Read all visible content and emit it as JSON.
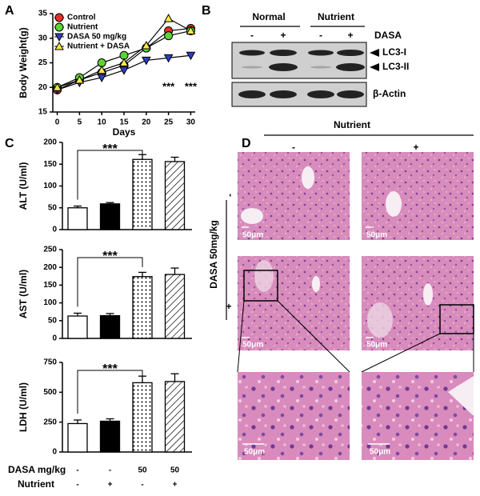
{
  "panel_labels": [
    "A",
    "B",
    "C",
    "D"
  ],
  "chart_data": [
    {
      "type": "line",
      "ylabel": "Body Weight(g)",
      "xlabel": "Days",
      "x": [
        0,
        5,
        10,
        15,
        20,
        25,
        30
      ],
      "xlim": [
        -1,
        31
      ],
      "xticks": [
        0,
        5,
        10,
        15,
        20,
        25,
        30
      ],
      "ylim": [
        15,
        35
      ],
      "yticks": [
        15,
        20,
        25,
        30,
        35
      ],
      "legend": "upper left",
      "series": [
        {
          "name": "Control",
          "color": "#e8302a",
          "marker": "circle",
          "values": [
            19.5,
            21.5,
            23,
            24.5,
            28,
            31.5,
            32
          ]
        },
        {
          "name": "Nutrient",
          "color": "#5ed238",
          "marker": "circle",
          "values": [
            20,
            22,
            25,
            26.5,
            28,
            30.5,
            31.5
          ]
        },
        {
          "name": "DASA 50 mg/kg",
          "color": "#2a3fc8",
          "marker": "triangle-down",
          "values": [
            19.5,
            21,
            22,
            23.5,
            25.5,
            26,
            26.5
          ]
        },
        {
          "name": "Nutrient + DASA",
          "color": "#f4e84a",
          "marker": "triangle-up",
          "values": [
            20,
            21.5,
            23.5,
            25,
            28.5,
            34,
            31.5
          ]
        }
      ],
      "annotations": [
        {
          "text": "***",
          "x": 25,
          "y": 20
        },
        {
          "text": "***",
          "x": 30,
          "y": 20
        }
      ]
    },
    {
      "type": "bar",
      "ylabel": "ALT (U/ml)",
      "fills": [
        "white",
        "black",
        "dotted",
        "hatched"
      ],
      "values": [
        50,
        59,
        161,
        156
      ],
      "errors": [
        4,
        3,
        11,
        10
      ],
      "ylim": [
        0,
        200
      ],
      "yticks": [
        0,
        50,
        100,
        150,
        200
      ],
      "significance": {
        "text": "***",
        "from": 0,
        "to": 2
      }
    },
    {
      "type": "bar",
      "ylabel": "AST (U/ml)",
      "fills": [
        "white",
        "black",
        "dotted",
        "hatched"
      ],
      "values": [
        63,
        64,
        174,
        180
      ],
      "errors": [
        8,
        6,
        12,
        18
      ],
      "ylim": [
        0,
        250
      ],
      "yticks": [
        0,
        50,
        100,
        150,
        200,
        250
      ],
      "significance": {
        "text": "***",
        "from": 0,
        "to": 2
      }
    },
    {
      "type": "bar",
      "ylabel": "LDH (U/ml)",
      "fills": [
        "white",
        "black",
        "dotted",
        "hatched"
      ],
      "values": [
        238,
        258,
        580,
        590
      ],
      "errors": [
        30,
        20,
        55,
        65
      ],
      "ylim": [
        0,
        750
      ],
      "yticks": [
        0,
        250,
        500,
        750
      ],
      "significance": {
        "text": "***",
        "from": 0,
        "to": 2
      }
    }
  ],
  "conditions": {
    "labels": [
      "DASA mg/kg",
      "Nutrient"
    ],
    "rows": [
      [
        "-",
        "-",
        "50",
        "50"
      ],
      [
        "-",
        "+",
        "-",
        "+"
      ]
    ]
  },
  "blot": {
    "groups": [
      "Normal",
      "Nutrient"
    ],
    "lanes": [
      "-",
      "+",
      "-",
      "+"
    ],
    "treatment": "DASA",
    "bands": [
      "LC3-I",
      "LC3-II"
    ],
    "loading": "β-Actin"
  },
  "histology": {
    "column_label": "Nutrient",
    "columns": [
      "-",
      "+"
    ],
    "row_label": "DASA 50mg/kg",
    "rows": [
      "-",
      "+"
    ],
    "scale_bars": [
      "50μm",
      "50μm",
      "50μm",
      "50μm",
      "50μm",
      "50μm"
    ]
  }
}
